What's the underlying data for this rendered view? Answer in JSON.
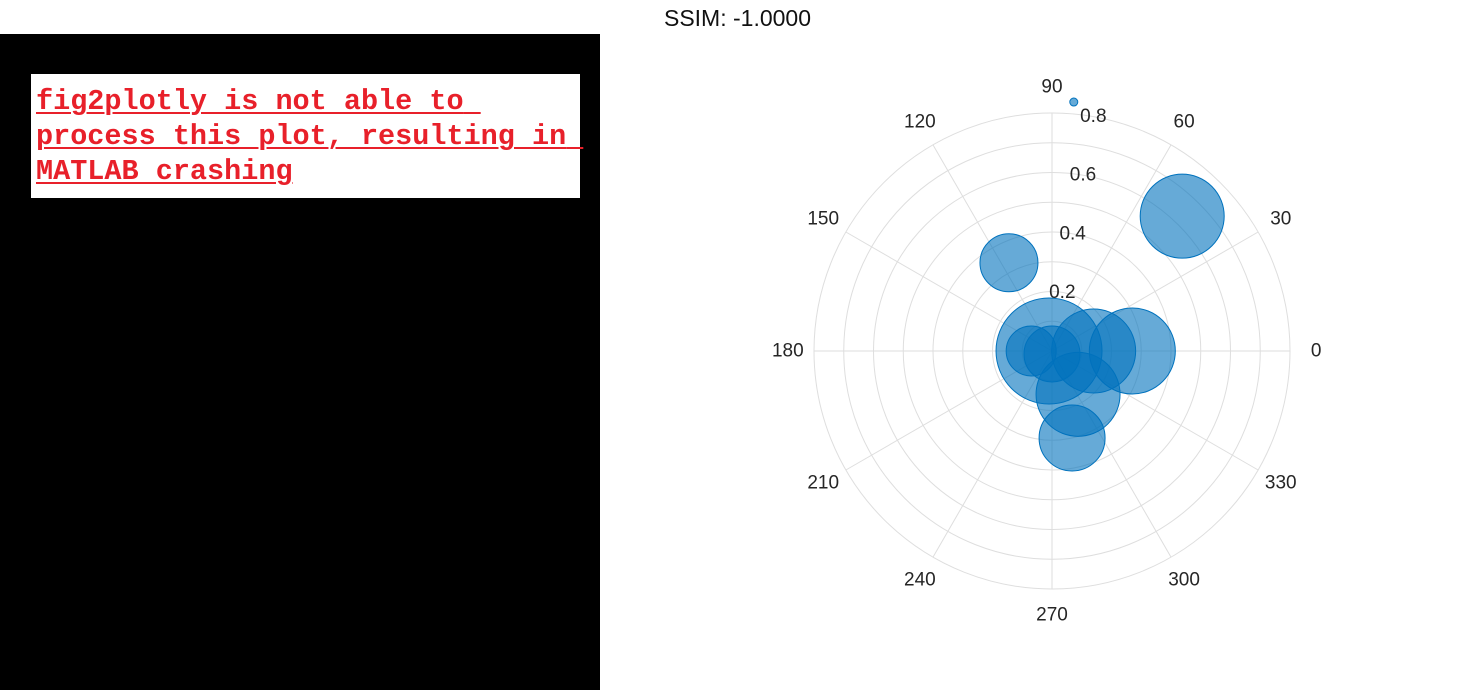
{
  "error_panel": {
    "message": "fig2plotly is not able to process this plot, resulting in MATLAB crashing",
    "text_color": "#e8202a",
    "background": "#000000"
  },
  "header": {
    "title": "SSIM: -1.0000"
  },
  "chart_data": {
    "type": "scatter",
    "subtype": "polar-bubble",
    "title": "SSIM: -1.0000",
    "theta_ticks": [
      "0",
      "30",
      "60",
      "90",
      "120",
      "150",
      "180",
      "210",
      "240",
      "270",
      "300",
      "330"
    ],
    "r_ticks": [
      "0.2",
      "0.4",
      "0.6",
      "0.8"
    ],
    "rlim": [
      0,
      0.8
    ],
    "grid": true,
    "marker_color": "#0072bd",
    "marker_alpha": 0.6,
    "series": [
      {
        "points": [
          {
            "theta": 85,
            "r": 0.84,
            "size": 4
          },
          {
            "theta": 46,
            "r": 0.63,
            "size": 42
          },
          {
            "theta": 116,
            "r": 0.33,
            "size": 29
          },
          {
            "theta": 0,
            "r": 0.27,
            "size": 43
          },
          {
            "theta": 0,
            "r": 0.14,
            "size": 42
          },
          {
            "theta": 180,
            "r": 0.01,
            "size": 53
          },
          {
            "theta": 180,
            "r": 0.07,
            "size": 25
          },
          {
            "theta": 301,
            "r": 0.17,
            "size": 42
          },
          {
            "theta": 283,
            "r": 0.3,
            "size": 33
          },
          {
            "theta": 270,
            "r": 0.01,
            "size": 28
          }
        ]
      }
    ]
  }
}
